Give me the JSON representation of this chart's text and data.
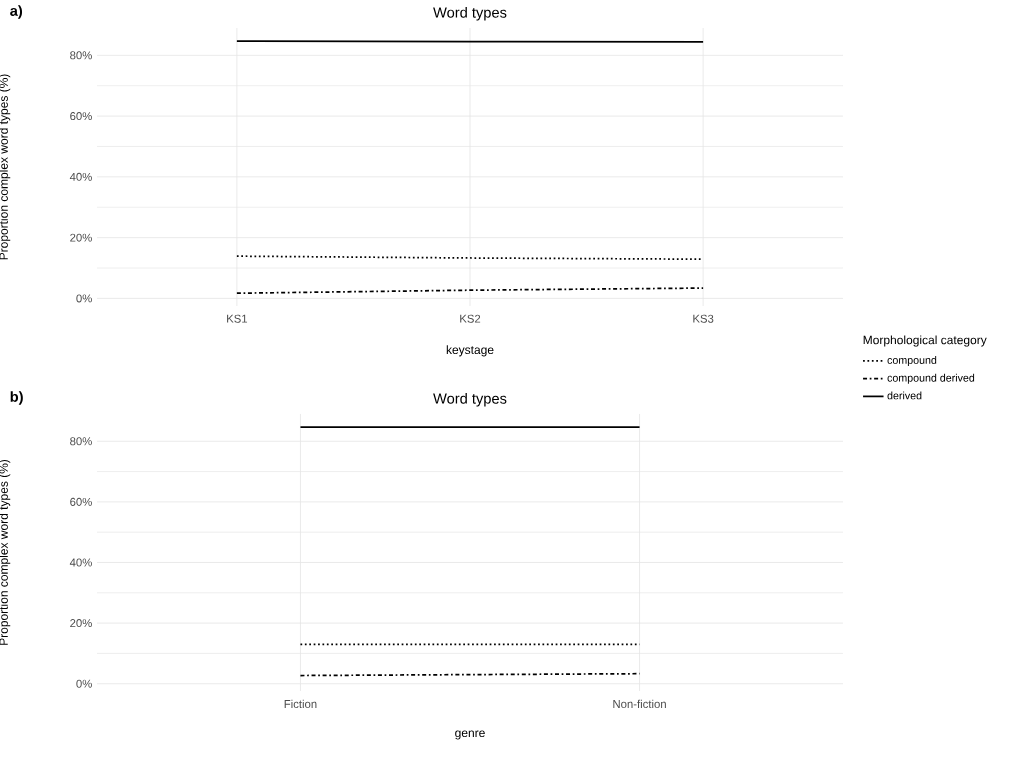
{
  "chart_data": [
    {
      "type": "line",
      "title": "Word types",
      "xlabel": "keystage",
      "ylabel": "Proportion complex word types (%)",
      "categories": [
        "KS1",
        "KS2",
        "KS3"
      ],
      "series": [
        {
          "name": "compound",
          "color": "#000000",
          "line_style": "dotted",
          "values": [
            13.9,
            13.3,
            12.9
          ]
        },
        {
          "name": "compound derived",
          "color": "#000000",
          "line_style": "dashdot",
          "values": [
            1.7,
            2.7,
            3.4
          ]
        },
        {
          "name": "derived",
          "color": "#000000",
          "line_style": "solid",
          "values": [
            84.7,
            84.5,
            84.4
          ]
        }
      ],
      "ylim": [
        -2.5,
        89
      ],
      "yticks": [
        {
          "value": 0,
          "label": "0%"
        },
        {
          "value": 20,
          "label": "20%"
        },
        {
          "value": 40,
          "label": "40%"
        },
        {
          "value": 60,
          "label": "60%"
        },
        {
          "value": 80,
          "label": "80%"
        }
      ],
      "grid": true,
      "legend": "right",
      "legend_title": "Morphological category",
      "annotations": [
        "a)"
      ]
    },
    {
      "type": "line",
      "title": "Word types",
      "xlabel": "genre",
      "ylabel": "Proportion complex word types (%)",
      "categories": [
        "Fiction",
        "Non-fiction"
      ],
      "series": [
        {
          "color": "#000000",
          "line_style": "dotted",
          "values": [
            13.0,
            13.0
          ]
        },
        {
          "color": "#000000",
          "line_style": "dashdot",
          "values": [
            2.7,
            3.3
          ]
        },
        {
          "color": "#000000",
          "line_style": "solid",
          "values": [
            84.7,
            84.7
          ]
        }
      ],
      "ylim": [
        -2.4,
        89
      ],
      "yticks": [
        {
          "value": 0,
          "label": "0%"
        },
        {
          "value": 20,
          "label": "20%"
        },
        {
          "value": 40,
          "label": "40%"
        },
        {
          "value": 60,
          "label": "60%"
        },
        {
          "value": 80,
          "label": "80%"
        }
      ],
      "grid": true,
      "legend": false,
      "annotations": [
        "b)"
      ]
    }
  ]
}
